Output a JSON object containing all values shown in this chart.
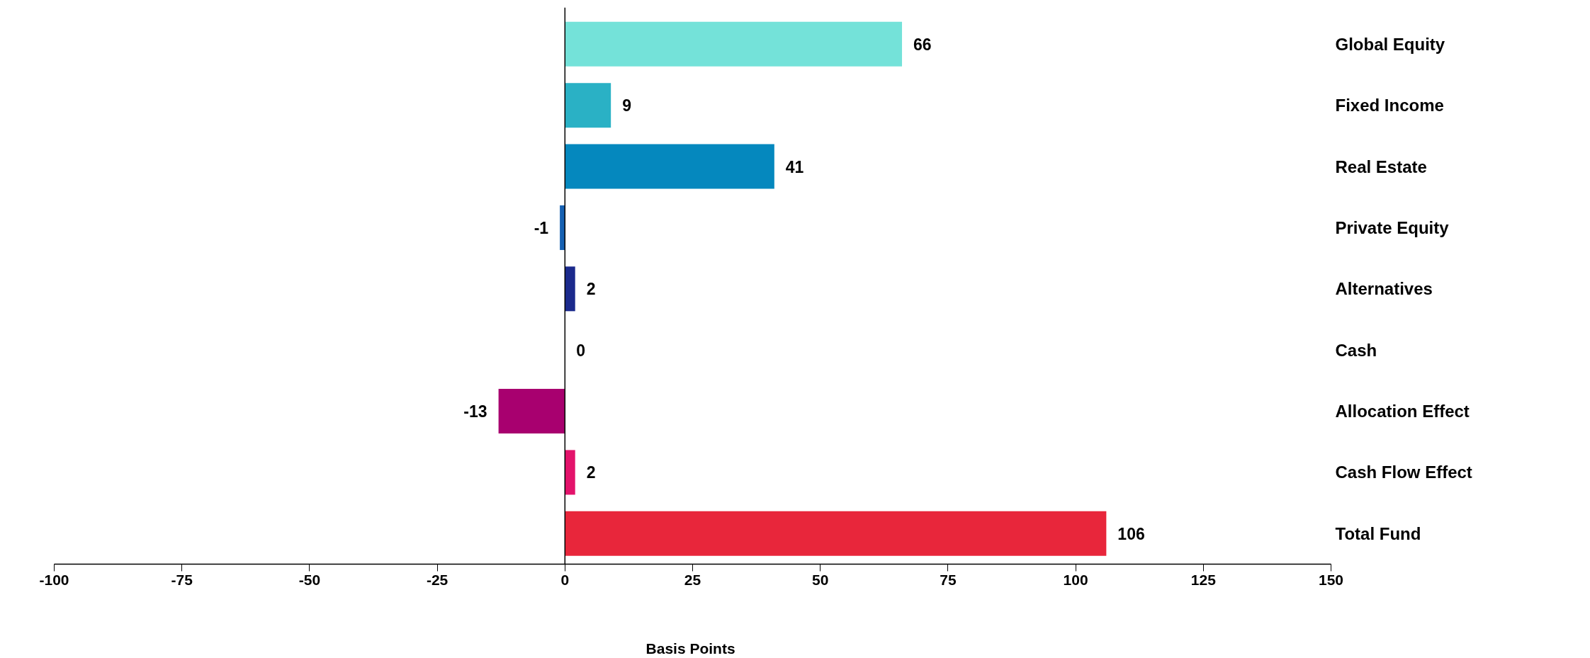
{
  "chart_data": {
    "type": "bar",
    "orientation": "horizontal",
    "xlabel": "Basis  Points",
    "categories": [
      "Global Equity",
      "Fixed Income",
      "Real Estate",
      "Private Equity",
      "Alternatives",
      "Cash",
      "Allocation Effect",
      "Cash Flow Effect",
      "Total Fund"
    ],
    "values": [
      66,
      9,
      41,
      -1,
      2,
      0,
      -13,
      2,
      106
    ],
    "colors": [
      "#74e2d9",
      "#2ab1c5",
      "#0588be",
      "#1661b2",
      "#1b2a8c",
      "#1b2a8c",
      "#a8006f",
      "#e3136b",
      "#e8263b"
    ],
    "xlim": [
      -100,
      150
    ],
    "xticks": [
      -100,
      -75,
      -50,
      -25,
      0,
      25,
      50,
      75,
      100,
      125,
      150
    ],
    "data_labels": true
  }
}
